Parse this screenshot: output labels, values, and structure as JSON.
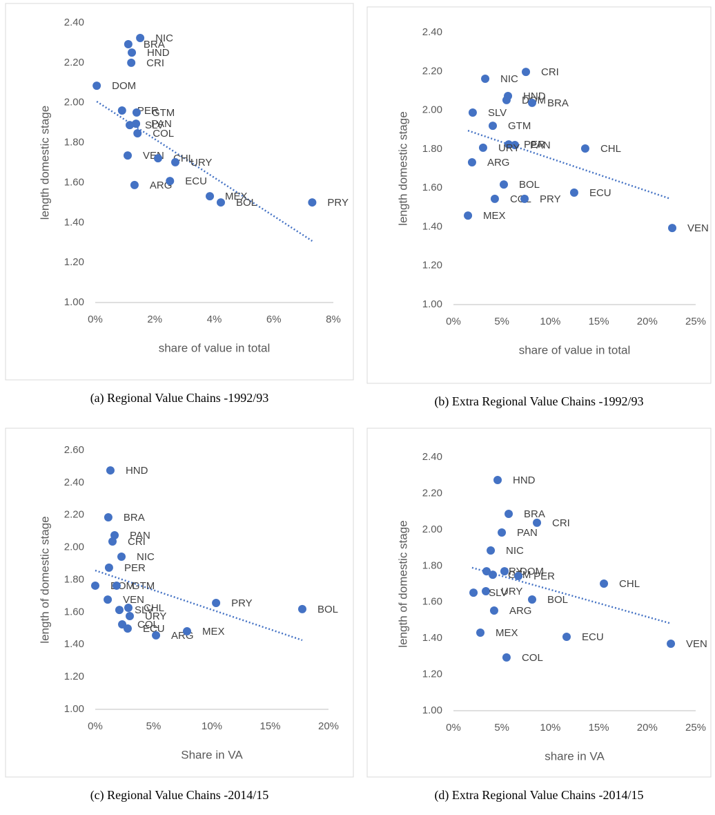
{
  "chart_data": [
    {
      "type": "scatter",
      "caption": "(a) Regional Value Chains -1992/93",
      "x_label": "share of value in total",
      "y_label": "length domestic stage",
      "point_labels": [
        "NIC",
        "BRA",
        "HND",
        "CRI",
        "DOM",
        "PER",
        "GTM",
        "SLV",
        "PAN",
        "COL",
        "VEN",
        "CHL",
        "URY",
        "ARG",
        "ECU",
        "MEX",
        "BOL",
        "PRY"
      ],
      "x": [
        1.51,
        1.11,
        1.23,
        1.21,
        0.05,
        0.9,
        1.39,
        1.16,
        1.37,
        1.42,
        1.09,
        2.11,
        2.69,
        1.32,
        2.51,
        3.85,
        4.22,
        7.29
      ],
      "values": [
        2.324,
        2.293,
        2.251,
        2.2,
        2.085,
        1.961,
        1.951,
        1.888,
        1.895,
        1.847,
        1.736,
        1.722,
        1.702,
        1.588,
        1.608,
        1.532,
        1.501,
        1.501
      ],
      "trendline": {
        "x": [
          0.05,
          7.29
        ],
        "values": [
          2.006,
          1.308
        ]
      },
      "color": "#4472c4",
      "grid": false,
      "xlim": [
        0,
        8
      ],
      "xticks": [
        {
          "value": 0,
          "label": "0%"
        },
        {
          "value": 2,
          "label": "2%"
        },
        {
          "value": 4,
          "label": "4%"
        },
        {
          "value": 6,
          "label": "6%"
        },
        {
          "value": 8,
          "label": "8%"
        }
      ],
      "ylim": [
        1,
        2.4
      ],
      "yticks": [
        {
          "value": 1,
          "label": "1.00"
        },
        {
          "value": 1.2,
          "label": "1.20"
        },
        {
          "value": 1.4,
          "label": "1.40"
        },
        {
          "value": 1.6,
          "label": "1.60"
        },
        {
          "value": 1.8,
          "label": "1.80"
        },
        {
          "value": 2,
          "label": "2.00"
        },
        {
          "value": 2.2,
          "label": "2.20"
        },
        {
          "value": 2.4,
          "label": "2.40"
        }
      ]
    },
    {
      "type": "scatter",
      "caption": "(b) Extra Regional Value Chains -1992/93",
      "x_label": "share of value in total",
      "y_label": "length domestic stage",
      "point_labels": [
        "CRI",
        "NIC",
        "HND",
        "DOM",
        "BRA",
        "SLV",
        "GTM",
        "PER",
        "PAN",
        "URY",
        "CHL",
        "ARG",
        "BOL",
        "ECU",
        "COL",
        "PRY",
        "MEX",
        "VEN"
      ],
      "x": [
        7.48,
        3.28,
        5.63,
        5.48,
        8.12,
        1.99,
        4.06,
        5.7,
        6.34,
        3.06,
        13.6,
        1.92,
        5.2,
        12.46,
        4.27,
        7.34,
        1.5,
        22.58
      ],
      "values": [
        2.197,
        2.162,
        2.073,
        2.052,
        2.038,
        1.988,
        1.92,
        1.824,
        1.821,
        1.807,
        1.803,
        1.732,
        1.618,
        1.576,
        1.544,
        1.544,
        1.458,
        1.394
      ],
      "trendline": {
        "x": [
          1.5,
          22.4
        ],
        "values": [
          1.895,
          1.544
        ]
      },
      "color": "#4472c4",
      "grid": false,
      "xlim": [
        0,
        25
      ],
      "xticks": [
        {
          "value": 0,
          "label": "0%"
        },
        {
          "value": 5,
          "label": "5%"
        },
        {
          "value": 10,
          "label": "10%"
        },
        {
          "value": 15,
          "label": "15%"
        },
        {
          "value": 20,
          "label": "20%"
        },
        {
          "value": 25,
          "label": "25%"
        }
      ],
      "ylim": [
        1,
        2.4
      ],
      "yticks": [
        {
          "value": 1,
          "label": "1.00"
        },
        {
          "value": 1.2,
          "label": "1.20"
        },
        {
          "value": 1.4,
          "label": "1.40"
        },
        {
          "value": 1.6,
          "label": "1.60"
        },
        {
          "value": 1.8,
          "label": "1.80"
        },
        {
          "value": 2,
          "label": "2.00"
        },
        {
          "value": 2.2,
          "label": "2.20"
        },
        {
          "value": 2.4,
          "label": "2.40"
        }
      ]
    },
    {
      "type": "scatter",
      "caption": "(c) Regional Value Chains -2014/15",
      "x_label": "Share in VA",
      "y_label": "length of domestic stage",
      "point_labels": [
        "HND",
        "BRA",
        "PAN",
        "CRI",
        "NIC",
        "PER",
        "DOM",
        "GTM",
        "VEN",
        "SLV",
        "CHL",
        "URY",
        "COL",
        "ECU",
        "ARG",
        "MEX",
        "PRY",
        "BOL"
      ],
      "x": [
        1.3,
        1.12,
        1.66,
        1.48,
        2.25,
        1.18,
        0,
        1.83,
        1.07,
        2.07,
        2.84,
        2.96,
        2.31,
        2.78,
        5.21,
        7.87,
        10.36,
        17.75
      ],
      "values": [
        2.476,
        2.186,
        2.075,
        2.037,
        1.943,
        1.875,
        1.764,
        1.764,
        1.678,
        1.614,
        1.627,
        1.576,
        1.525,
        1.499,
        1.457,
        1.482,
        1.657,
        1.619
      ],
      "trendline": {
        "x": [
          0,
          17.75
        ],
        "values": [
          1.858,
          1.427
        ]
      },
      "color": "#4472c4",
      "grid": false,
      "xlim": [
        0,
        20
      ],
      "xticks": [
        {
          "value": 0,
          "label": "0%"
        },
        {
          "value": 5,
          "label": "5%"
        },
        {
          "value": 10,
          "label": "10%"
        },
        {
          "value": 15,
          "label": "15%"
        },
        {
          "value": 20,
          "label": "20%"
        }
      ],
      "ylim": [
        1,
        2.6
      ],
      "yticks": [
        {
          "value": 1,
          "label": "1.00"
        },
        {
          "value": 1.2,
          "label": "1.20"
        },
        {
          "value": 1.4,
          "label": "1.40"
        },
        {
          "value": 1.6,
          "label": "1.60"
        },
        {
          "value": 1.8,
          "label": "1.80"
        },
        {
          "value": 2,
          "label": "2.00"
        },
        {
          "value": 2.2,
          "label": "2.20"
        },
        {
          "value": 2.4,
          "label": "2.40"
        },
        {
          "value": 2.6,
          "label": "2.60"
        }
      ]
    },
    {
      "type": "scatter",
      "caption": "(d) Extra Regional Value Chains -2014/15",
      "x_label": "share in VA",
      "y_label": "length of domestic stage",
      "point_labels": [
        "HND",
        "BRA",
        "CRI",
        "PAN",
        "NIC",
        "PRY",
        "DOM",
        "GTM",
        "PER",
        "CHL",
        "URY",
        "SLV",
        "BOL",
        "ARG",
        "MEX",
        "ECU",
        "VEN",
        "COL"
      ],
      "x": [
        4.56,
        5.7,
        8.62,
        4.99,
        3.85,
        3.42,
        5.27,
        4.06,
        6.7,
        15.53,
        3.35,
        2.07,
        8.12,
        4.2,
        2.78,
        11.68,
        22.44,
        5.48
      ],
      "values": [
        2.274,
        2.087,
        2.038,
        1.984,
        1.885,
        1.77,
        1.77,
        1.751,
        1.744,
        1.702,
        1.66,
        1.652,
        1.614,
        1.553,
        1.431,
        1.408,
        1.37,
        1.294
      ],
      "trendline": {
        "x": [
          1.92,
          22.29
        ],
        "values": [
          1.79,
          1.484
        ]
      },
      "color": "#4472c4",
      "grid": false,
      "xlim": [
        0,
        25
      ],
      "xticks": [
        {
          "value": 0,
          "label": "0%"
        },
        {
          "value": 5,
          "label": "5%"
        },
        {
          "value": 10,
          "label": "10%"
        },
        {
          "value": 15,
          "label": "15%"
        },
        {
          "value": 20,
          "label": "20%"
        },
        {
          "value": 25,
          "label": "25%"
        }
      ],
      "ylim": [
        1,
        2.4
      ],
      "yticks": [
        {
          "value": 1,
          "label": "1.00"
        },
        {
          "value": 1.2,
          "label": "1.20"
        },
        {
          "value": 1.4,
          "label": "1.40"
        },
        {
          "value": 1.6,
          "label": "1.60"
        },
        {
          "value": 1.8,
          "label": "1.80"
        },
        {
          "value": 2,
          "label": "2.00"
        },
        {
          "value": 2.2,
          "label": "2.20"
        },
        {
          "value": 2.4,
          "label": "2.40"
        }
      ]
    }
  ]
}
